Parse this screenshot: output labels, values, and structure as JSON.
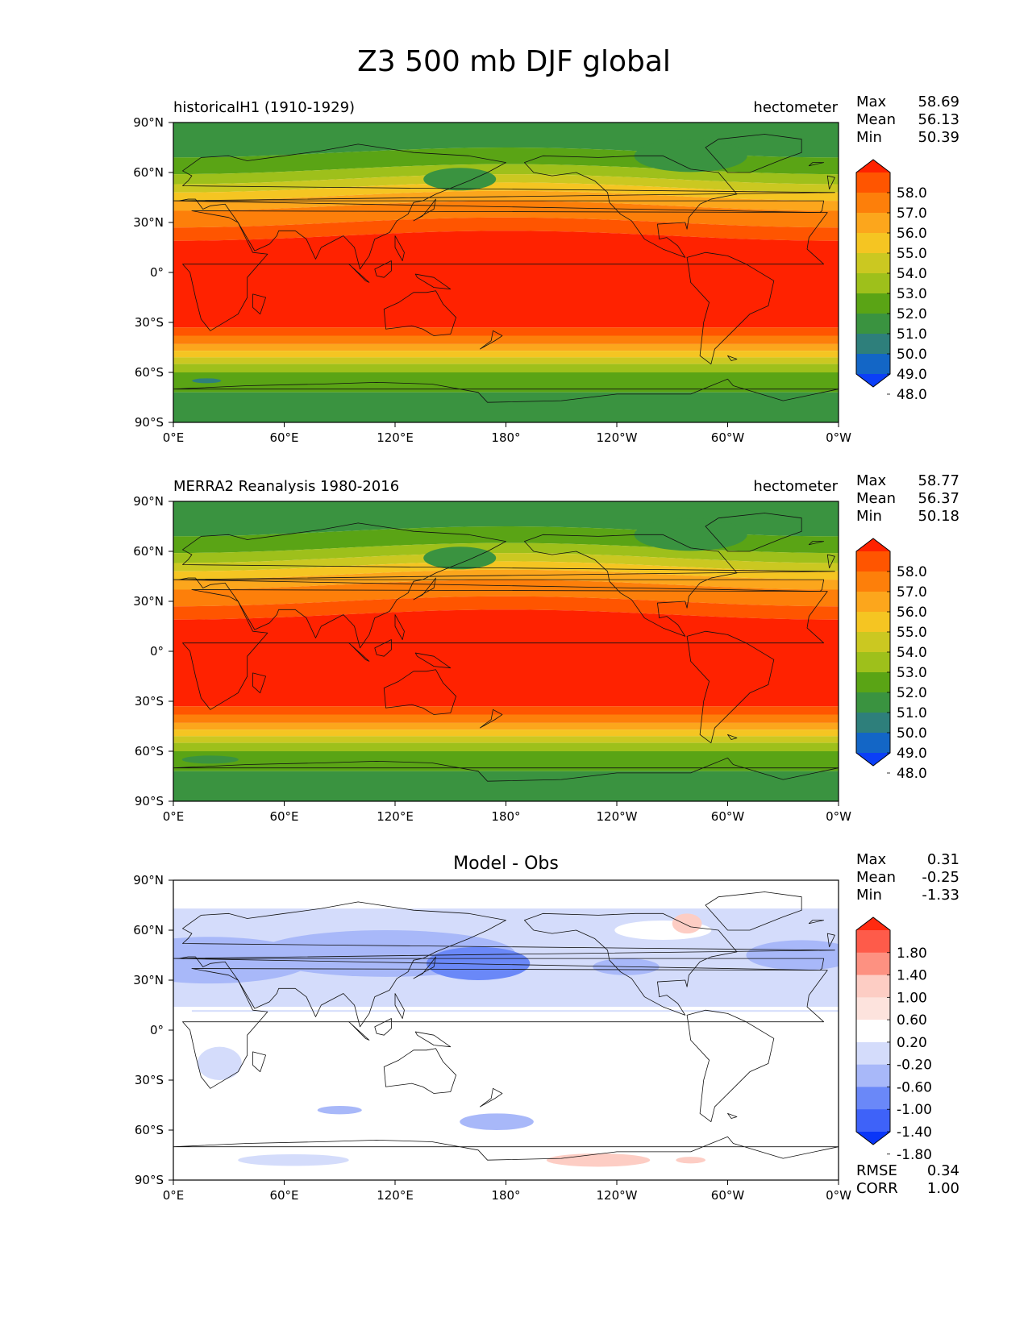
{
  "figure": {
    "title": "Z3 500 mb DJF global"
  },
  "axes": {
    "lat_ticks": [
      "90°N",
      "60°N",
      "30°N",
      "0°",
      "30°S",
      "60°S",
      "90°S"
    ],
    "lon_ticks": [
      "0°E",
      "60°E",
      "120°E",
      "180°",
      "120°W",
      "60°W",
      "0°W"
    ]
  },
  "panels": [
    {
      "id": "test",
      "left_title": "historicalH1 (1910-1929)",
      "right_title": "hectometer",
      "center_title": "",
      "stats": [
        {
          "label": "Max",
          "value": "58.69"
        },
        {
          "label": "Mean",
          "value": "56.13"
        },
        {
          "label": "Min",
          "value": "50.39"
        }
      ],
      "colorbar_labels": [
        "58.0",
        "57.0",
        "56.0",
        "55.0",
        "54.0",
        "53.0",
        "52.0",
        "51.0",
        "50.0",
        "49.0",
        "48.0"
      ],
      "colorbar_colors": [
        "#ff2200",
        "#ff5500",
        "#fd7f0a",
        "#fca61c",
        "#f5c522",
        "#cbc821",
        "#9ec01b",
        "#5aa415",
        "#3a9340",
        "#2e7f7b",
        "#1366c6",
        "#0b3ff7"
      ],
      "extra_stats": []
    },
    {
      "id": "reference",
      "left_title": "MERRA2 Reanalysis 1980-2016",
      "right_title": "hectometer",
      "center_title": "",
      "stats": [
        {
          "label": "Max",
          "value": "58.77"
        },
        {
          "label": "Mean",
          "value": "56.37"
        },
        {
          "label": "Min",
          "value": "50.18"
        }
      ],
      "colorbar_labels": [
        "58.0",
        "57.0",
        "56.0",
        "55.0",
        "54.0",
        "53.0",
        "52.0",
        "51.0",
        "50.0",
        "49.0",
        "48.0"
      ],
      "colorbar_colors": [
        "#ff2200",
        "#ff5500",
        "#fd7f0a",
        "#fca61c",
        "#f5c522",
        "#cbc821",
        "#9ec01b",
        "#5aa415",
        "#3a9340",
        "#2e7f7b",
        "#1366c6",
        "#0b3ff7"
      ],
      "extra_stats": []
    },
    {
      "id": "difference",
      "left_title": "",
      "right_title": "",
      "center_title": "Model - Obs",
      "stats": [
        {
          "label": "Max",
          "value": "0.31"
        },
        {
          "label": "Mean",
          "value": "-0.25"
        },
        {
          "label": "Min",
          "value": "-1.33"
        }
      ],
      "colorbar_labels": [
        "1.80",
        "1.40",
        "1.00",
        "0.60",
        "0.20",
        "-0.20",
        "-0.60",
        "-1.00",
        "-1.40",
        "-1.80"
      ],
      "colorbar_colors": [
        "#ff2a10",
        "#fe5b4a",
        "#fd9181",
        "#fdcdc4",
        "#fde3dd",
        "#ffffff",
        "#d4dcfb",
        "#a8b8f9",
        "#6a88f8",
        "#3e62f9",
        "#0a36f8"
      ],
      "extra_stats": [
        {
          "label": "RMSE",
          "value": "0.34"
        },
        {
          "label": "CORR",
          "value": "1.00"
        }
      ]
    }
  ]
}
